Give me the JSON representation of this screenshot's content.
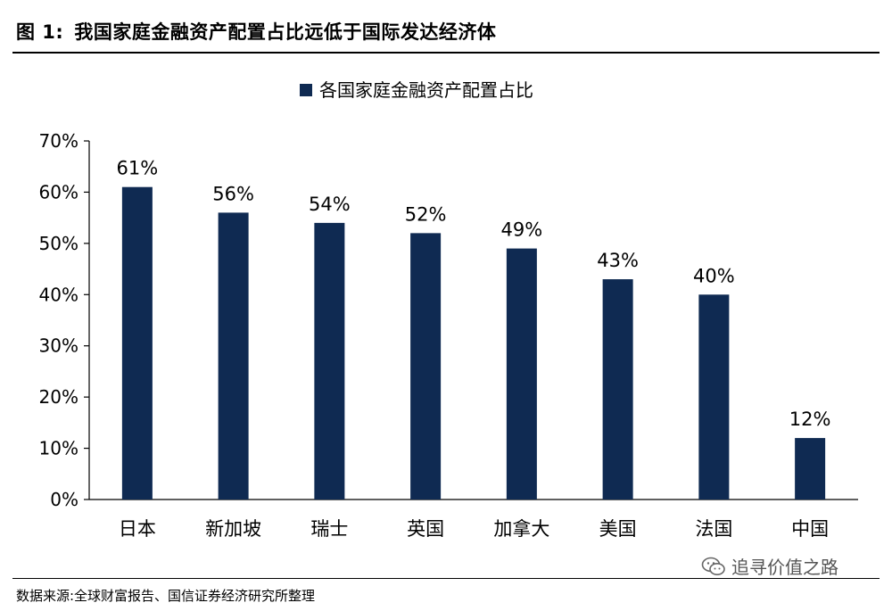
{
  "figure": {
    "label": "图 1:",
    "title": "我国家庭金融资产配置占比远低于国际发达经济体"
  },
  "source_text": "数据来源:全球财富报告、国信证券经济研究所整理",
  "watermark": {
    "text": "追寻价值之路",
    "icon": "wechat-icon"
  },
  "chart_data": {
    "type": "bar",
    "categories": [
      "日本",
      "新加坡",
      "瑞士",
      "英国",
      "加拿大",
      "美国",
      "法国",
      "中国"
    ],
    "series": [
      {
        "name": "各国家庭金融资产配置占比",
        "values": [
          61,
          56,
          54,
          52,
          49,
          43,
          40,
          12
        ],
        "labels": [
          "61%",
          "56%",
          "54%",
          "52%",
          "49%",
          "43%",
          "40%",
          "12%"
        ],
        "color": "#0f2a52"
      }
    ],
    "ylim": [
      0,
      70
    ],
    "yticks": [
      0,
      10,
      20,
      30,
      40,
      50,
      60,
      70
    ],
    "ytick_labels": [
      "0%",
      "10%",
      "20%",
      "30%",
      "40%",
      "50%",
      "60%",
      "70%"
    ],
    "legend_position": "top",
    "grid": false,
    "title": "",
    "xlabel": "",
    "ylabel": ""
  }
}
